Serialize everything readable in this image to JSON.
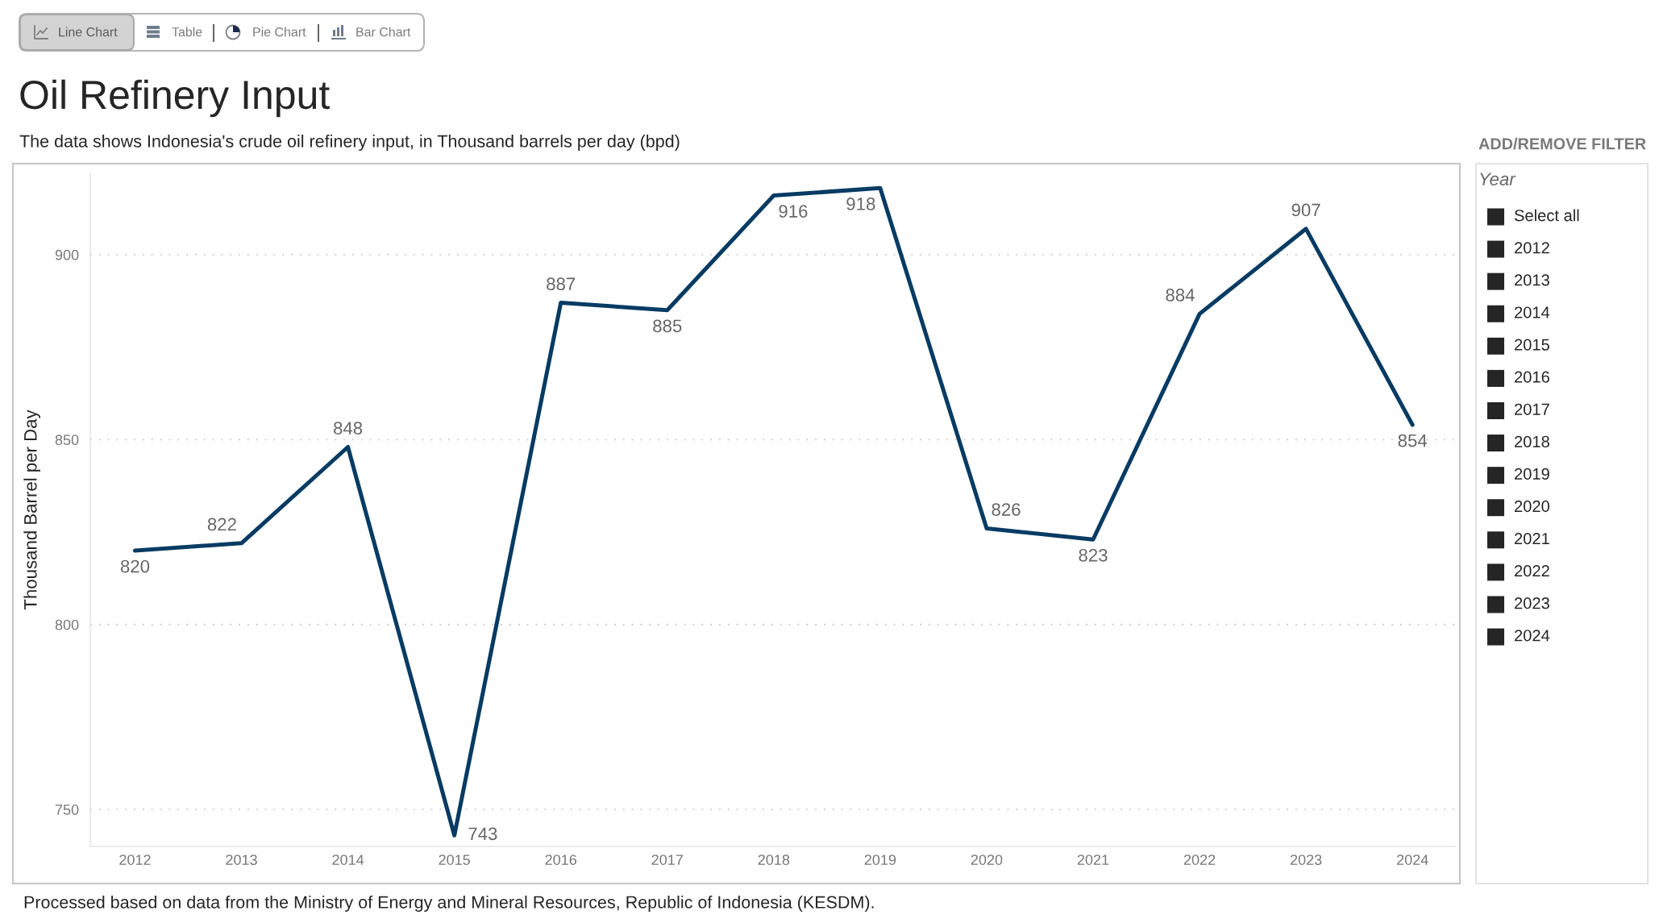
{
  "chart_data": {
    "type": "line",
    "title": "Oil Refinery Input",
    "subtitle": "The data shows Indonesia's crude oil refinery input, in Thousand barrels per day (bpd)",
    "ylabel": "Thousand Barrel per Day",
    "categories": [
      "2012",
      "2013",
      "2014",
      "2015",
      "2016",
      "2017",
      "2018",
      "2019",
      "2020",
      "2021",
      "2022",
      "2023",
      "2024"
    ],
    "values": [
      820,
      822,
      848,
      743,
      887,
      885,
      916,
      918,
      826,
      823,
      884,
      907,
      854
    ],
    "color": "#073b63",
    "ylim": [
      740,
      922
    ],
    "yticks": [
      750,
      800,
      850,
      900
    ],
    "grid": "y",
    "line_style": "solid",
    "data_labels": true,
    "annotations": [
      "Line Chart",
      "Table",
      "Pie Chart",
      "Bar Chart",
      "ADD/REMOVE FILTER",
      "Year",
      "Select all",
      "2012",
      "2013",
      "2014",
      "2015",
      "2016",
      "2017",
      "2018",
      "2019",
      "2020",
      "2021",
      "2022",
      "2023",
      "2024",
      "Processed based on data from the Ministry of Energy and Mineral Resources, Republic of Indonesia (KESDM)."
    ]
  }
}
